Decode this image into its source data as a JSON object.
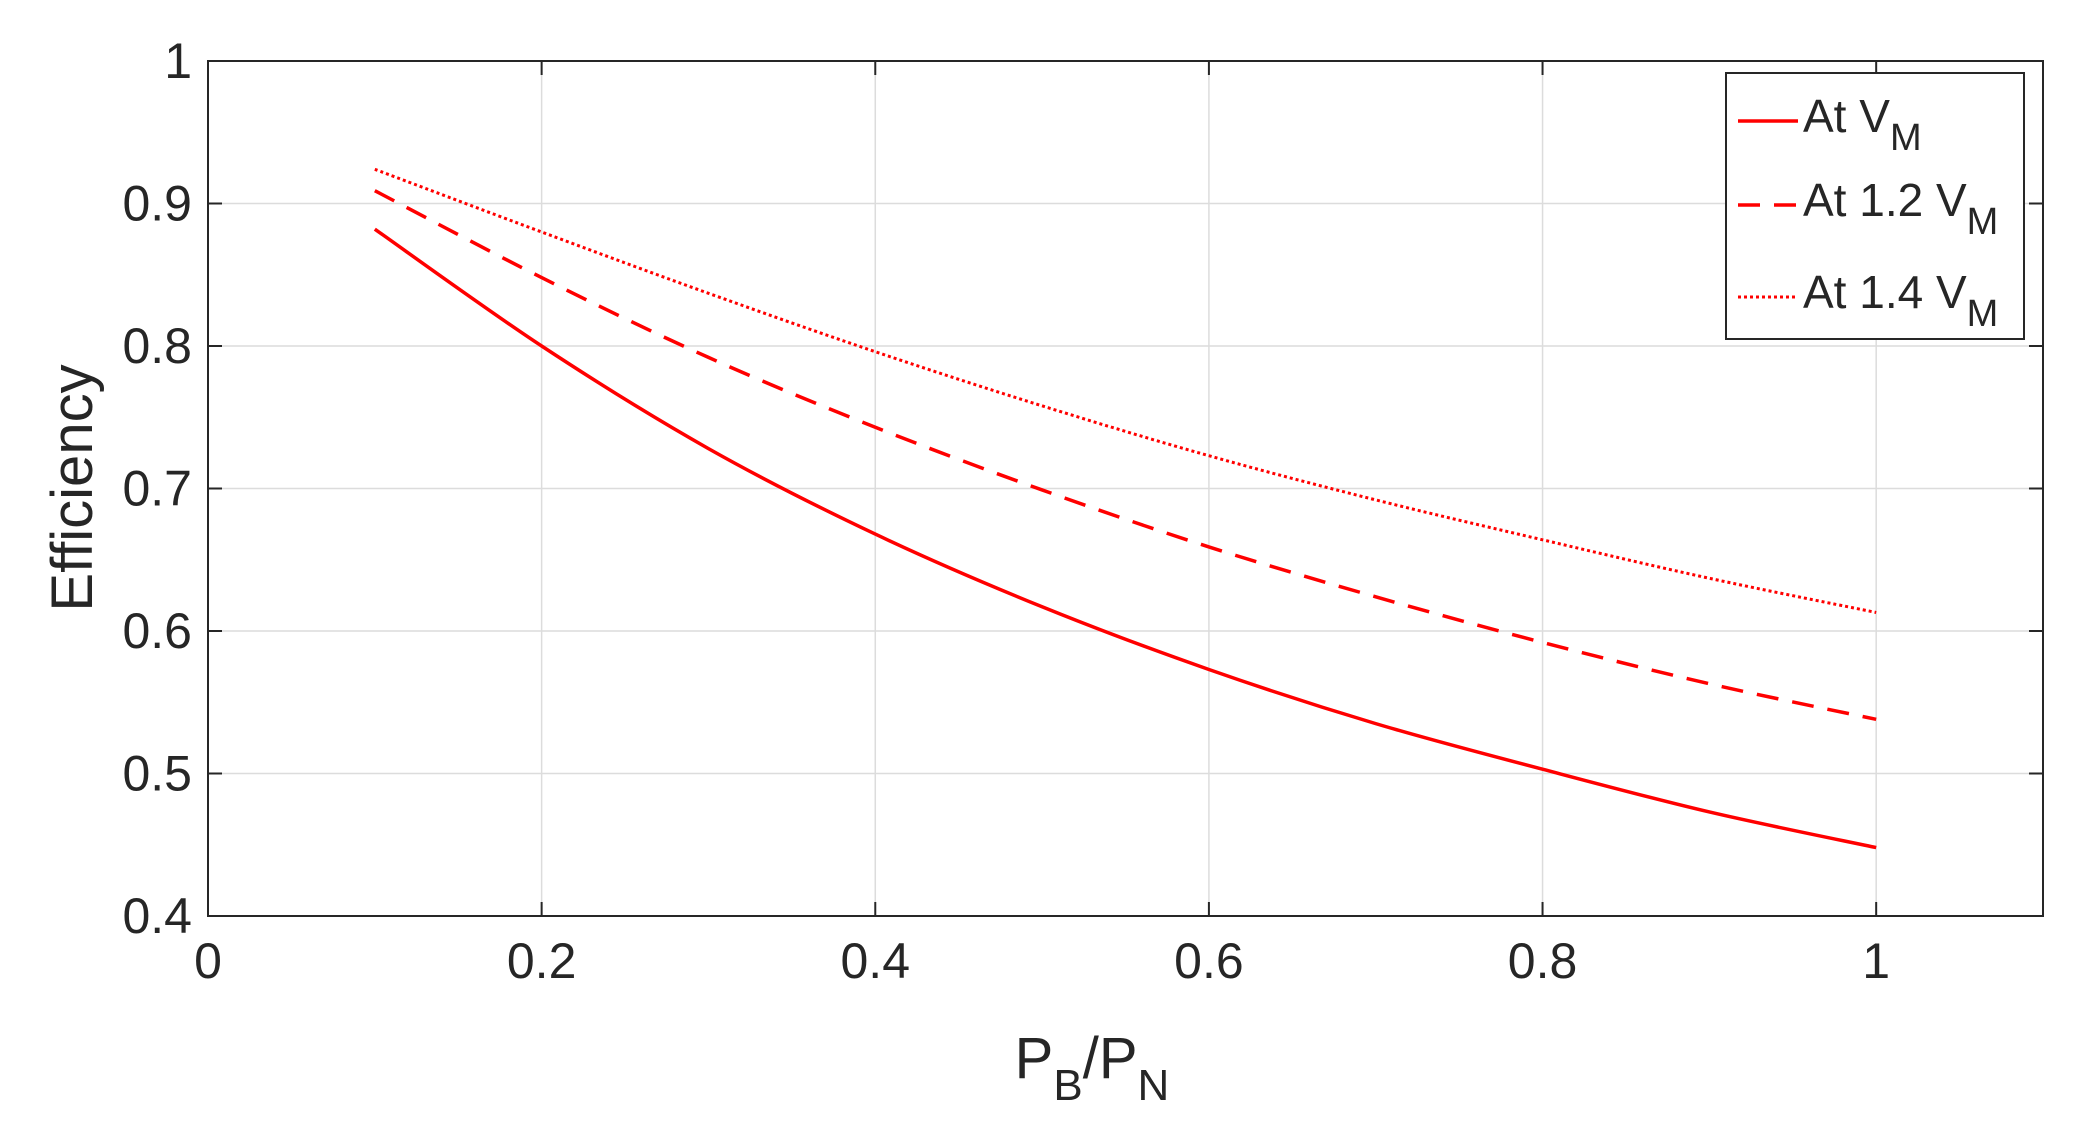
{
  "chart_data": {
    "type": "line",
    "title": "",
    "xlabel": {
      "main1": "P",
      "sub1": "B",
      "sep": "/",
      "main2": "P",
      "sub2": "N"
    },
    "ylabel": "Efficiency",
    "xlim": [
      0,
      1.1
    ],
    "ylim": [
      0.4,
      1.0
    ],
    "xticks": [
      0,
      0.2,
      0.4,
      0.6,
      0.8,
      1.0
    ],
    "xtick_labels": [
      "0",
      "0.2",
      "0.4",
      "0.6",
      "0.8",
      "1"
    ],
    "yticks": [
      0.4,
      0.5,
      0.6,
      0.7,
      0.8,
      0.9,
      1.0
    ],
    "ytick_labels": [
      "0.4",
      "0.5",
      "0.6",
      "0.7",
      "0.8",
      "0.9",
      "1"
    ],
    "grid": true,
    "legend_position": "top-right",
    "line_color": "#ff0000",
    "x": [
      0.1,
      0.2,
      0.3,
      0.4,
      0.5,
      0.6,
      0.7,
      0.8,
      0.9,
      1.0
    ],
    "series": [
      {
        "name": {
          "main": "At V",
          "sub": "M"
        },
        "style": "solid",
        "values": [
          0.882,
          0.8,
          0.728,
          0.668,
          0.617,
          0.573,
          0.535,
          0.503,
          0.473,
          0.448
        ]
      },
      {
        "name": {
          "main": "At 1.2 V",
          "sub": "M"
        },
        "style": "dashed",
        "values": [
          0.909,
          0.848,
          0.792,
          0.743,
          0.699,
          0.659,
          0.624,
          0.592,
          0.563,
          0.538
        ]
      },
      {
        "name": {
          "main": "At 1.4 V",
          "sub": "M"
        },
        "style": "dotted",
        "values": [
          0.924,
          0.88,
          0.837,
          0.796,
          0.758,
          0.723,
          0.692,
          0.664,
          0.637,
          0.613
        ]
      }
    ]
  }
}
